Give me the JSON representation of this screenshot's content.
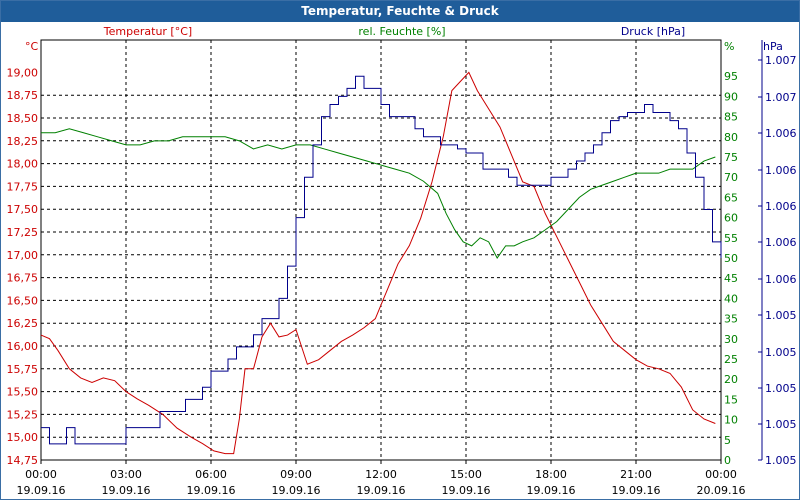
{
  "window": {
    "title": "Temperatur, Feuchte & Druck"
  },
  "colors": {
    "temperature": "#cc0000",
    "humidity": "#008000",
    "pressure": "#00008b",
    "grid": "#000000",
    "title_bar": "#1f5d9a"
  },
  "chart_data": {
    "type": "line",
    "title": "Temperatur, Feuchte & Druck",
    "grid": true,
    "x_ticks": [
      {
        "time": "00:00",
        "date": "19.09.16"
      },
      {
        "time": "03:00",
        "date": "19.09.16"
      },
      {
        "time": "06:00",
        "date": "19.09.16"
      },
      {
        "time": "09:00",
        "date": "19.09.16"
      },
      {
        "time": "12:00",
        "date": "19.09.16"
      },
      {
        "time": "15:00",
        "date": "19.09.16"
      },
      {
        "time": "18:00",
        "date": "19.09.16"
      },
      {
        "time": "21:00",
        "date": "19.09.16"
      },
      {
        "time": "00:00",
        "date": "20.09.16"
      }
    ],
    "x_range_hours": [
      0,
      24
    ],
    "axes": {
      "left": {
        "unit": "°C",
        "label": "Temperatur [°C]",
        "min": 14.75,
        "max": 19.0,
        "ticks": [
          "19,00",
          "18,75",
          "18,50",
          "18,25",
          "18,00",
          "17,75",
          "17,50",
          "17,25",
          "17,00",
          "16,75",
          "16,50",
          "16,25",
          "16,00",
          "15,75",
          "15,50",
          "15,25",
          "15,00",
          "14,75"
        ]
      },
      "right": {
        "unit": "%",
        "label": "rel. Feuchte [%]",
        "min": 0,
        "max": 95,
        "ticks": [
          "95",
          "90",
          "85",
          "80",
          "75",
          "70",
          "65",
          "60",
          "55",
          "50",
          "45",
          "40",
          "35",
          "30",
          "25",
          "20",
          "15",
          "10",
          "5",
          "0"
        ]
      },
      "far_right": {
        "unit": "hPa",
        "label": "Druck [hPa]",
        "ticks": [
          "1.007",
          "1.007",
          "1.006",
          "1.006",
          "1.006",
          "1.006",
          "1.006",
          "1.005",
          "1.005",
          "1.005",
          "1.005",
          "1.005"
        ]
      }
    },
    "series": [
      {
        "name": "Temperatur [°C]",
        "axis": "left",
        "color": "#cc0000",
        "x": [
          0,
          0.3,
          0.6,
          1.0,
          1.4,
          1.8,
          2.2,
          2.6,
          3.0,
          3.4,
          3.8,
          4.3,
          4.8,
          5.3,
          5.7,
          6.1,
          6.5,
          6.8,
          7.0,
          7.2,
          7.5,
          7.8,
          8.1,
          8.4,
          8.7,
          9.0,
          9.4,
          9.8,
          10.2,
          10.6,
          11.0,
          11.4,
          11.8,
          12.2,
          12.6,
          13.0,
          13.4,
          13.8,
          14.2,
          14.5,
          14.8,
          15.1,
          15.4,
          15.8,
          16.2,
          16.6,
          17.0,
          17.4,
          17.8,
          18.2,
          18.6,
          19.0,
          19.4,
          19.8,
          20.2,
          20.6,
          21.0,
          21.4,
          21.8,
          22.2,
          22.6,
          23.0,
          23.4,
          23.8
        ],
        "y": [
          16.12,
          16.08,
          15.95,
          15.75,
          15.65,
          15.6,
          15.65,
          15.62,
          15.5,
          15.42,
          15.35,
          15.25,
          15.1,
          15.0,
          14.93,
          14.85,
          14.82,
          14.82,
          15.2,
          15.75,
          15.75,
          16.1,
          16.25,
          16.1,
          16.12,
          16.18,
          15.8,
          15.85,
          15.95,
          16.05,
          16.12,
          16.2,
          16.3,
          16.6,
          16.9,
          17.1,
          17.4,
          17.8,
          18.3,
          18.8,
          18.9,
          19.0,
          18.8,
          18.6,
          18.4,
          18.1,
          17.8,
          17.75,
          17.45,
          17.2,
          16.95,
          16.7,
          16.45,
          16.25,
          16.05,
          15.95,
          15.85,
          15.78,
          15.75,
          15.7,
          15.55,
          15.3,
          15.2,
          15.15
        ]
      },
      {
        "name": "rel. Feuchte [%]",
        "axis": "right",
        "color": "#008000",
        "x": [
          0,
          0.5,
          1.0,
          1.5,
          2.0,
          2.5,
          3.0,
          3.5,
          4.0,
          4.5,
          5.0,
          5.5,
          6.0,
          6.5,
          7.0,
          7.5,
          8.0,
          8.5,
          9.0,
          9.5,
          10.0,
          10.5,
          11.0,
          11.5,
          12.0,
          12.5,
          13.0,
          13.5,
          14.0,
          14.3,
          14.6,
          14.9,
          15.2,
          15.5,
          15.8,
          16.1,
          16.4,
          16.7,
          17.0,
          17.4,
          17.8,
          18.2,
          18.6,
          19.0,
          19.4,
          19.8,
          20.2,
          20.6,
          21.0,
          21.4,
          21.8,
          22.2,
          22.6,
          23.0,
          23.4,
          23.8
        ],
        "y": [
          81,
          81,
          82,
          81,
          80,
          79,
          78,
          78,
          79,
          79,
          80,
          80,
          80,
          80,
          79,
          77,
          78,
          77,
          78,
          78,
          77,
          76,
          75,
          74,
          73,
          72,
          71,
          69,
          66,
          61,
          57,
          54,
          53,
          55,
          54,
          50,
          53,
          53,
          54,
          55,
          57,
          59,
          62,
          65,
          67,
          68,
          69,
          70,
          71,
          71,
          71,
          72,
          72,
          72,
          74,
          75
        ]
      },
      {
        "name": "Druck [hPa]",
        "axis": "far_right",
        "color": "#00008b",
        "x": [
          0,
          0.3,
          0.6,
          0.9,
          1.2,
          1.5,
          1.8,
          2.1,
          2.4,
          2.7,
          3.0,
          3.3,
          3.6,
          3.9,
          4.2,
          4.5,
          4.8,
          5.1,
          5.4,
          5.7,
          6.0,
          6.3,
          6.6,
          6.9,
          7.2,
          7.5,
          7.8,
          8.1,
          8.4,
          8.7,
          9.0,
          9.3,
          9.6,
          9.9,
          10.2,
          10.5,
          10.8,
          11.1,
          11.4,
          11.7,
          12.0,
          12.3,
          12.6,
          12.9,
          13.2,
          13.5,
          13.8,
          14.1,
          14.4,
          14.7,
          15.0,
          15.3,
          15.6,
          15.9,
          16.2,
          16.5,
          16.8,
          17.1,
          17.4,
          17.7,
          18.0,
          18.3,
          18.6,
          18.9,
          19.2,
          19.5,
          19.8,
          20.1,
          20.4,
          20.7,
          21.0,
          21.3,
          21.6,
          21.9,
          22.2,
          22.5,
          22.8,
          23.1,
          23.4,
          23.7,
          24.0
        ],
        "y": [
          8,
          4,
          4,
          8,
          4,
          4,
          4,
          4,
          4,
          4,
          8,
          8,
          8,
          8,
          12,
          12,
          12,
          15,
          15,
          18,
          22,
          22,
          25,
          28,
          28,
          31,
          35,
          35,
          40,
          48,
          60,
          70,
          78,
          85,
          88,
          90,
          92,
          95,
          92,
          92,
          88,
          85,
          85,
          85,
          82,
          80,
          80,
          78,
          78,
          77,
          76,
          76,
          72,
          72,
          72,
          70,
          68,
          68,
          68,
          68,
          70,
          70,
          72,
          74,
          76,
          78,
          81,
          84,
          85,
          86,
          86,
          88,
          86,
          86,
          84,
          82,
          76,
          70,
          62,
          54,
          50
        ]
      }
    ]
  }
}
